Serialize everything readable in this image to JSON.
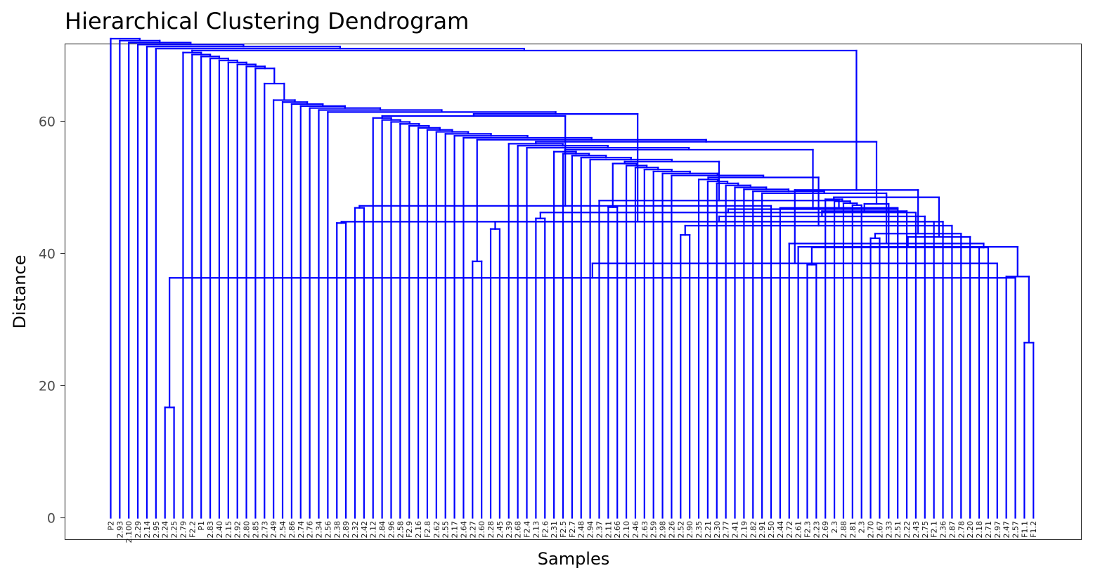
{
  "chart_data": {
    "type": "dendrogram",
    "title": "Hierarchical Clustering Dendrogram",
    "xlabel": "Samples",
    "ylabel": "Distance",
    "ylim": [
      -3.2,
      72
    ],
    "y_ticks": [
      0,
      20,
      40,
      60
    ],
    "grid": false,
    "line_color": "#0000ff",
    "leaves": [
      "P2",
      "2.93",
      "2.100",
      "2.29",
      "2.14",
      "2.95",
      "2.24",
      "2.25",
      "2.79",
      "F2.2",
      "P1",
      "2.83",
      "2.40",
      "2.15",
      "2.92",
      "2.80",
      "2.85",
      "2.73",
      "2.49",
      "2.54",
      "2.86",
      "2.74",
      "2.76",
      "2.34",
      "2.56",
      "2.38",
      "2.89",
      "2.32",
      "2.42",
      "2.12",
      "2.84",
      "2.96",
      "2.58",
      "F2.9",
      "2.16",
      "F2.8",
      "2.62",
      "2.55",
      "2.17",
      "2.64",
      "2.27",
      "2.60",
      "2.28",
      "2.45",
      "2.39",
      "2.68",
      "F2.4",
      "2.13",
      "F2.6",
      "2.31",
      "F2.5",
      "F2.7",
      "2.48",
      "2.94",
      "2.37",
      "2.11",
      "2.66",
      "2.10",
      "2.46",
      "2.63",
      "2.59",
      "2.98",
      "2.26",
      "2.52",
      "2.90",
      "2.35",
      "2.21",
      "2.30",
      "2.77",
      "2.41",
      "2.19",
      "2.82",
      "2.91",
      "2.50",
      "2.44",
      "2.72",
      "2.61",
      "F2.3",
      "2.23",
      "2.69",
      "2.3",
      "2.88",
      "2.81",
      "2.3",
      "2.70",
      "2.67",
      "2.33",
      "2.51",
      "2.22",
      "2.43",
      "2.75",
      "F2.1",
      "2.36",
      "2.87",
      "2.78",
      "2.20",
      "2.18",
      "2.71",
      "2.97",
      "2.47",
      "2.57",
      "F1.1",
      "F1.2"
    ],
    "merges": [
      {
        "l": 6,
        "r": 7,
        "h": 16.7
      },
      {
        "l": 101,
        "r": 102,
        "h": 26.5
      },
      {
        "l": 100,
        "r": "m1",
        "h": 36.3
      },
      {
        "l": 99,
        "r": "m2",
        "h": 36.5
      },
      {
        "l": 77,
        "r": 78,
        "h": 38.3
      },
      {
        "l": 98,
        "r": "m3",
        "h": 38.5
      },
      {
        "l": 40,
        "r": 41,
        "h": 38.8
      },
      {
        "l": 96,
        "r": 97,
        "h": 40.9
      },
      {
        "l": 76,
        "r": "m4",
        "h": 41.0
      },
      {
        "l": "m8",
        "r": "m5",
        "h": 40.9
      },
      {
        "l": 75,
        "r": "m8",
        "h": 41.5
      },
      {
        "l": 84,
        "r": 85,
        "h": 42.3
      },
      {
        "l": 95,
        "r": "m9",
        "h": 42.5
      },
      {
        "l": 63,
        "r": 64,
        "h": 42.8
      },
      {
        "l": 94,
        "r": "m12",
        "h": 43.0
      },
      {
        "l": 42,
        "r": 43,
        "h": 43.7
      },
      {
        "l": 93,
        "r": "m14",
        "h": 44.2
      },
      {
        "l": 25,
        "r": 26,
        "h": 44.6
      },
      {
        "l": 92,
        "r": "m16",
        "h": 44.8
      },
      {
        "l": 91,
        "r": "m18",
        "h": 44.8
      },
      {
        "l": 47,
        "r": 48,
        "h": 45.3
      },
      {
        "l": 90,
        "r": "m19",
        "h": 45.6
      },
      {
        "l": 89,
        "r": "m21",
        "h": 46.2
      },
      {
        "l": 88,
        "r": "m22",
        "h": 46.4
      },
      {
        "l": 87,
        "r": "m23",
        "h": 46.7
      },
      {
        "l": 27,
        "r": 28,
        "h": 46.9
      },
      {
        "l": 74,
        "r": "m10",
        "h": 46.9
      },
      {
        "l": 55,
        "r": 56,
        "h": 47.0
      },
      {
        "l": 73,
        "r": "m26",
        "h": 47.2
      },
      {
        "l": "m6",
        "r": "m15",
        "h": 49.6
      },
      {
        "l": 54,
        "r": "m27",
        "h": 48.0
      },
      {
        "l": 86,
        "r": "m24",
        "h": 47.5
      }
    ]
  }
}
